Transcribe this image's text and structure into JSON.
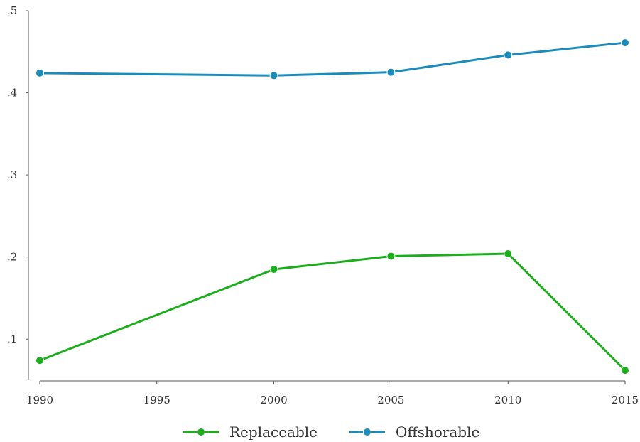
{
  "chart_data": {
    "type": "line",
    "title": "",
    "xlabel": "",
    "ylabel": "",
    "x": [
      1990,
      2000,
      2005,
      2010,
      2015
    ],
    "xticks": [
      "1990",
      "1995",
      "2000",
      "2005",
      "2010",
      "2015"
    ],
    "xtick_values": [
      1990,
      1995,
      2000,
      2005,
      2010,
      2015
    ],
    "xlim": [
      1990,
      2015
    ],
    "yticks": [
      ".1",
      ".2",
      ".3",
      ".4",
      ".5"
    ],
    "ytick_values": [
      0.1,
      0.2,
      0.3,
      0.4,
      0.5
    ],
    "ylim": [
      0.05,
      0.5
    ],
    "grid": false,
    "legend_position": "bottom",
    "series": [
      {
        "name": "Replaceable",
        "color": "#1aae1a",
        "values": [
          0.074,
          0.185,
          0.201,
          0.204,
          0.062
        ]
      },
      {
        "name": "Offshorable",
        "color": "#1a8cbc",
        "values": [
          0.424,
          0.421,
          0.425,
          0.446,
          0.461
        ]
      }
    ]
  }
}
